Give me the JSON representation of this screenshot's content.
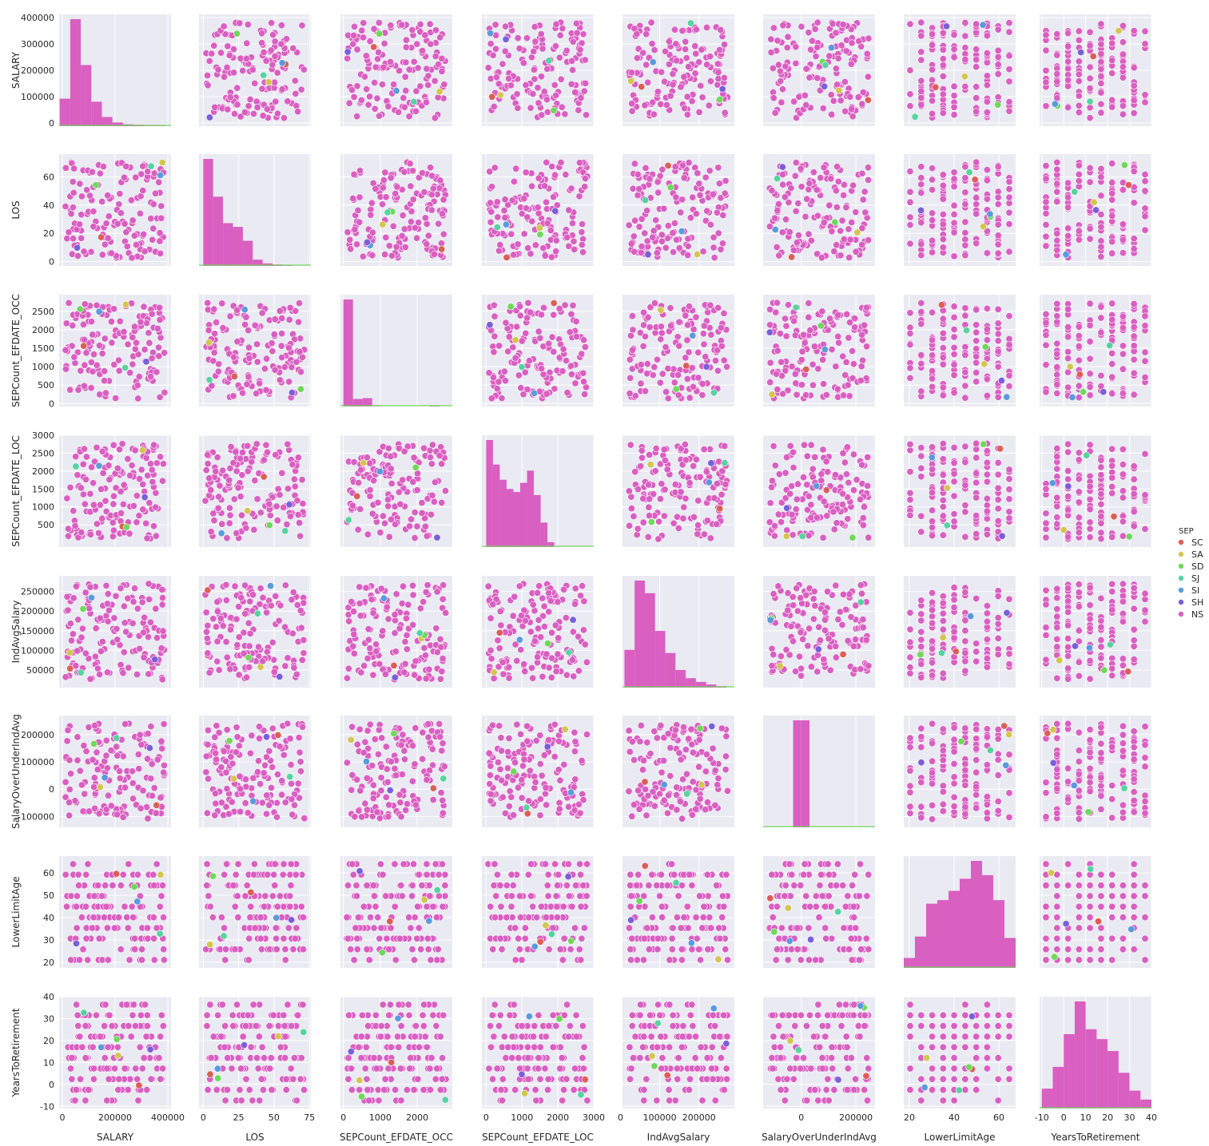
{
  "chart_data": {
    "type": "scatter",
    "variables": [
      {
        "name": "SALARY",
        "lim": [
          -12000,
          412000
        ],
        "ticks": [
          0,
          100000,
          200000,
          300000,
          400000
        ],
        "xticks": [
          0,
          200000,
          400000
        ]
      },
      {
        "name": "LOS",
        "lim": [
          -3,
          76
        ],
        "ticks": [
          0,
          20,
          40,
          60
        ],
        "xticks": [
          0,
          25,
          50,
          75
        ]
      },
      {
        "name": "SEPCount_EFDATE_OCC",
        "lim": [
          -80,
          2950
        ],
        "ticks": [
          0,
          500,
          1000,
          1500,
          2000,
          2500
        ],
        "xticks": [
          0,
          1000,
          2000
        ]
      },
      {
        "name": "SEPCount_EFDATE_LOC",
        "lim": [
          -120,
          3000
        ],
        "ticks": [
          500,
          1000,
          1500,
          2000,
          2500,
          3000
        ],
        "xticks": [
          0,
          1000,
          2000,
          3000
        ]
      },
      {
        "name": "IndAvgSalary",
        "lim": [
          5000,
          290000
        ],
        "ticks": [
          0,
          50000,
          100000,
          150000,
          200000,
          250000
        ],
        "xticks": [
          0,
          100000,
          200000
        ]
      },
      {
        "name": "SalaryOverUnderIndAvg",
        "lim": [
          -140000,
          270000
        ],
        "ticks": [
          -100000,
          0,
          100000,
          200000
        ],
        "xticks": [
          0,
          200000
        ]
      },
      {
        "name": "LowerLimitAge",
        "lim": [
          17.5,
          67.5
        ],
        "ticks": [
          20,
          30,
          40,
          50,
          60
        ],
        "xticks": [
          20,
          40,
          60
        ]
      },
      {
        "name": "YearsToRetirement",
        "lim": [
          -11,
          40
        ],
        "ticks": [
          -10,
          0,
          10,
          20,
          30,
          40
        ],
        "xticks": [
          -10,
          0,
          10,
          20,
          30,
          40
        ]
      }
    ],
    "legend": {
      "title": "SEP",
      "placement": "right",
      "entries": [
        {
          "label": "SC",
          "color": "#db5f57"
        },
        {
          "label": "SA",
          "color": "#d3c64e"
        },
        {
          "label": "SD",
          "color": "#6ed95a"
        },
        {
          "label": "SJ",
          "color": "#57d3a0"
        },
        {
          "label": "SI",
          "color": "#5a9bdb"
        },
        {
          "label": "SH",
          "color": "#7a5fd9"
        },
        {
          "label": "NS",
          "color": "#d95fc1"
        }
      ]
    },
    "histograms": {
      "SALARY": {
        "bins": [
          -10000,
          30000,
          70000,
          110000,
          150000,
          190000,
          230000,
          270000,
          310000,
          350000,
          390000
        ],
        "counts": [
          45,
          175,
          100,
          40,
          15,
          6,
          3,
          2,
          1,
          1
        ]
      },
      "LOS": {
        "bins": [
          0,
          7,
          14,
          21,
          28,
          35,
          42,
          49,
          56,
          63,
          70
        ],
        "counts": [
          170,
          110,
          68,
          62,
          40,
          10,
          4,
          2,
          1,
          0
        ]
      },
      "SEPCount_EFDATE_OCC": {
        "bins": [
          0,
          260,
          520,
          780,
          1040,
          1300,
          1560,
          1820,
          2080,
          2340,
          2600
        ],
        "counts": [
          640,
          45,
          50,
          3,
          0,
          0,
          0,
          0,
          0,
          5
        ]
      },
      "SEPCount_EFDATE_LOC": {
        "bins": [
          0,
          190,
          380,
          570,
          760,
          950,
          1140,
          1330,
          1520,
          1710,
          1900
        ],
        "counts": [
          175,
          135,
          110,
          95,
          90,
          105,
          125,
          85,
          40,
          8
        ]
      },
      "IndAvgSalary": {
        "bins": [
          10000,
          36000,
          62000,
          88000,
          114000,
          140000,
          166000,
          192000,
          218000,
          244000,
          270000
        ],
        "counts": [
          60,
          170,
          150,
          90,
          55,
          28,
          15,
          9,
          5,
          2
        ]
      },
      "SalaryOverUnderIndAvg": {
        "bins": [
          -60000,
          -30000,
          0,
          30000,
          60000
        ],
        "counts": [
          0,
          30,
          30,
          0
        ]
      },
      "LowerLimitAge": {
        "bins": [
          17.5,
          22.5,
          27.5,
          32.5,
          37.5,
          42.5,
          47.5,
          52.5,
          57.5,
          62.5,
          67.5
        ],
        "counts": [
          14,
          44,
          90,
          95,
          108,
          125,
          150,
          130,
          95,
          42
        ]
      },
      "YearsToRetirement": {
        "bins": [
          -10,
          -5,
          0,
          5,
          10,
          15,
          20,
          25,
          30,
          35,
          40
        ],
        "counts": [
          20,
          42,
          75,
          108,
          80,
          70,
          58,
          36,
          18,
          9
        ]
      }
    }
  }
}
